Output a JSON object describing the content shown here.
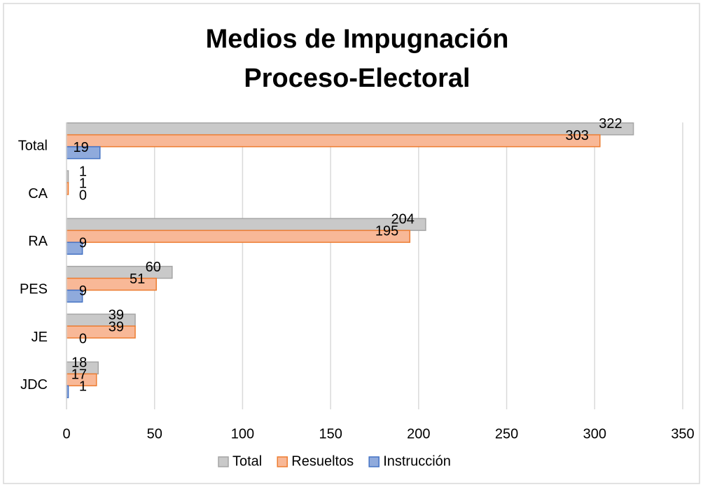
{
  "chart_data": {
    "type": "barh",
    "title": [
      "Medios de Impugnación",
      "Proceso-Electoral"
    ],
    "categories": [
      "Total",
      "CA",
      "RA",
      "PES",
      "JE",
      "JDC"
    ],
    "series": [
      {
        "name": "Total",
        "color": "#c9c9c9",
        "stroke": "#a5a5a5",
        "values": [
          322,
          1,
          204,
          60,
          39,
          18
        ]
      },
      {
        "name": "Resueltos",
        "color": "#f8b897",
        "stroke": "#ed7d31",
        "values": [
          303,
          1,
          195,
          51,
          39,
          17
        ]
      },
      {
        "name": "Instrucción",
        "color": "#8faadc",
        "stroke": "#4472c4",
        "values": [
          19,
          0,
          9,
          9,
          0,
          1
        ]
      }
    ],
    "xlim": [
      0,
      350
    ],
    "xticks": [
      0,
      50,
      100,
      150,
      200,
      250,
      300,
      350
    ],
    "grid": true,
    "legend": "bottom"
  }
}
